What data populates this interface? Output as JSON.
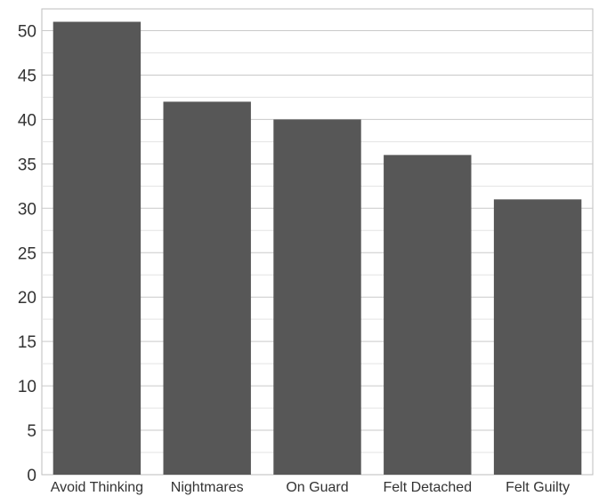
{
  "chart_data": {
    "type": "bar",
    "title": "",
    "xlabel": "",
    "ylabel": "",
    "categories": [
      "Avoid Thinking",
      "Nightmares",
      "On Guard",
      "Felt Detached",
      "Felt Guilty"
    ],
    "values": [
      51,
      42,
      40,
      36,
      31
    ],
    "ylim": [
      0,
      52.5
    ],
    "yticks": [
      0,
      5,
      10,
      15,
      20,
      25,
      30,
      35,
      40,
      45,
      50
    ],
    "grid": true,
    "legend": "none",
    "colors": {
      "bar": "#575757",
      "grid_major": "#c9c9c9",
      "grid_minor": "#e3e3e3",
      "frame": "#bdbdbd"
    }
  }
}
